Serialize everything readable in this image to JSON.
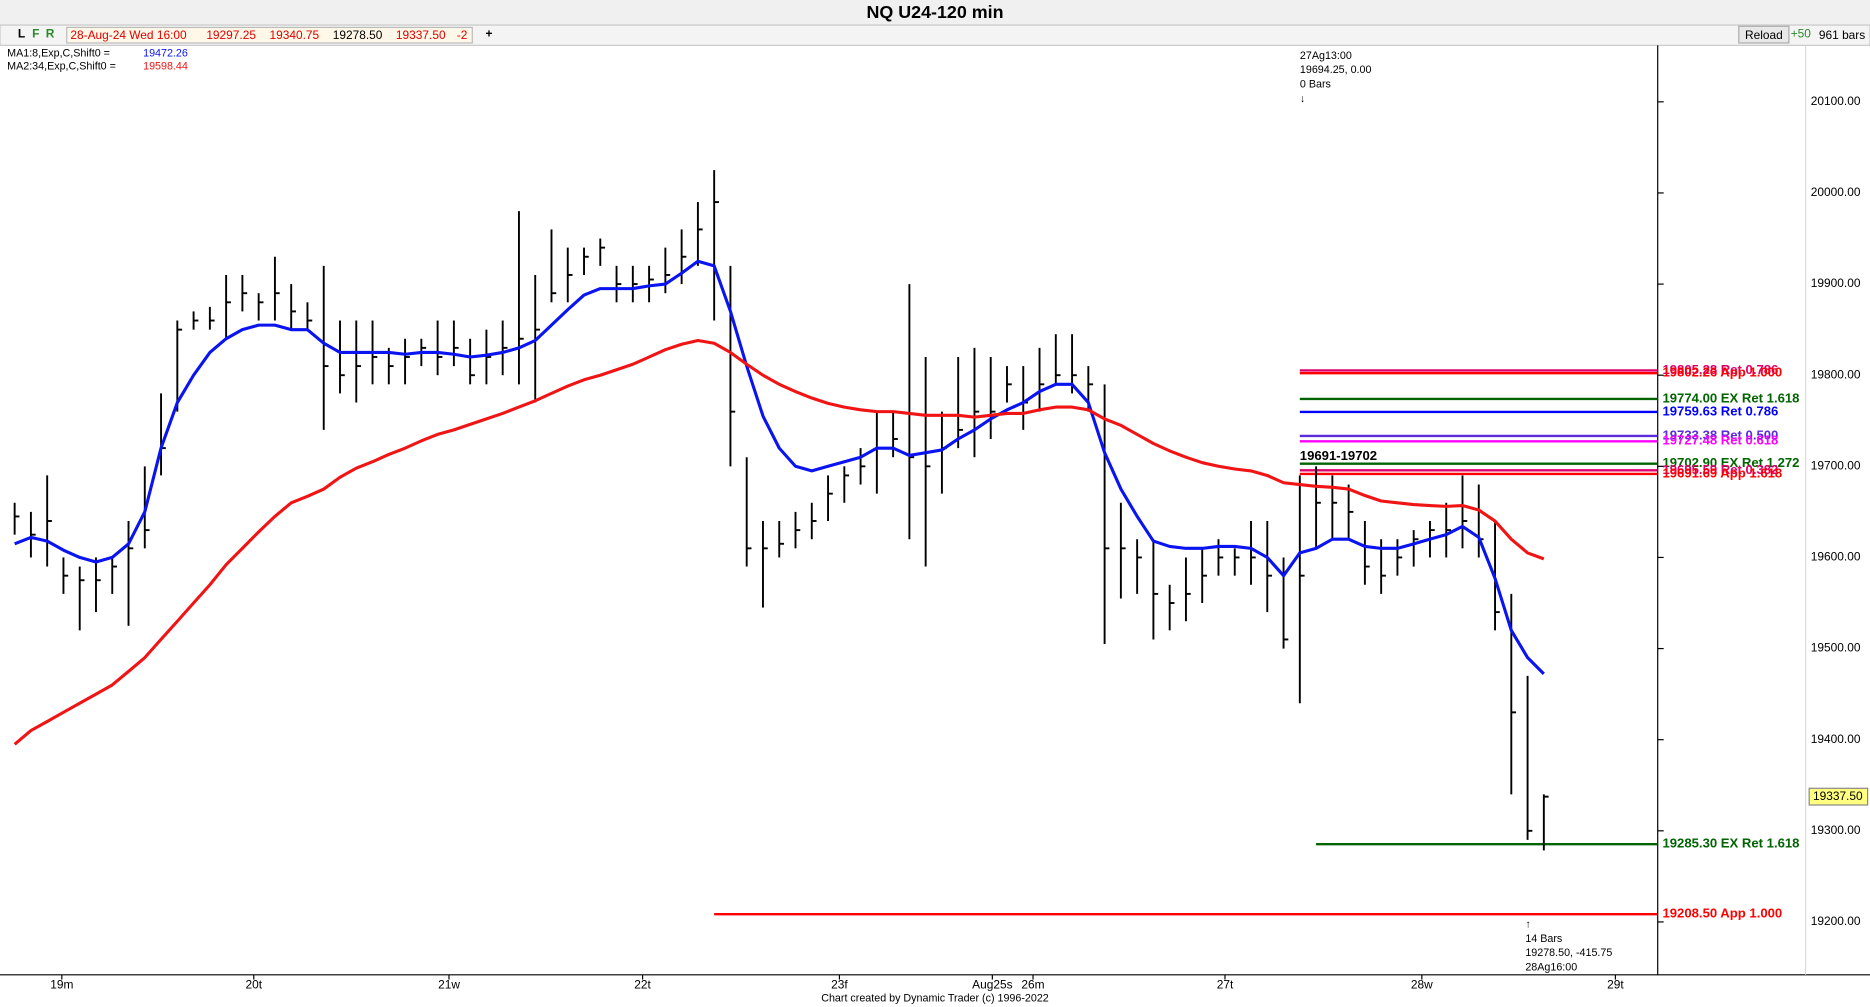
{
  "toolbar": {
    "buttons": [
      "L",
      "F",
      "R"
    ],
    "quote": [
      "28-Aug-24 Wed 16:00",
      "19297.25",
      "19340.75",
      "19278.50",
      "19337.50",
      "-2"
    ],
    "plus": "+",
    "reload": "Reload",
    "step": "+50",
    "bars": "961 bars"
  },
  "chart_data": {
    "type": "hlc",
    "title": "NQ U24-120 min",
    "bar_color": "#000000",
    "high": [
      19660,
      19650,
      19690,
      19600,
      19590,
      19600,
      19600,
      19640,
      19700,
      19780,
      19860,
      19870,
      19875,
      19910,
      19910,
      19890,
      19930,
      19900,
      19880,
      19920,
      19860,
      19860,
      19860,
      19830,
      19840,
      19840,
      19860,
      19860,
      19840,
      19850,
      19860,
      19980,
      19910,
      19960,
      19940,
      19940,
      19950,
      19920,
      19920,
      19920,
      19940,
      19960,
      19990,
      20025,
      19920,
      19710,
      19640,
      19640,
      19650,
      19660,
      19690,
      19700,
      19720,
      19760,
      19760,
      19900,
      19820,
      19760,
      19820,
      19830,
      19820,
      19810,
      19810,
      19830,
      19845,
      19845,
      19810,
      19790,
      19660,
      19620,
      19620,
      19570,
      19600,
      19610,
      19620,
      19610,
      19640,
      19640,
      19600,
      19690,
      19700,
      19690,
      19680,
      19640,
      19620,
      19620,
      19630,
      19640,
      19660,
      19690,
      19680,
      19640,
      19560,
      19470,
      19340
    ],
    "low": [
      19625,
      19600,
      19590,
      19560,
      19520,
      19540,
      19560,
      19525,
      19610,
      19690,
      19760,
      19850,
      19850,
      19840,
      19870,
      19860,
      19860,
      19850,
      19850,
      19740,
      19780,
      19770,
      19790,
      19790,
      19790,
      19810,
      19800,
      19810,
      19790,
      19790,
      19800,
      19790,
      19770,
      19880,
      19880,
      19910,
      19920,
      19880,
      19880,
      19880,
      19890,
      19900,
      19920,
      19860,
      19700,
      19590,
      19545,
      19600,
      19610,
      19620,
      19640,
      19660,
      19680,
      19670,
      19710,
      19620,
      19590,
      19670,
      19720,
      19710,
      19730,
      19770,
      19740,
      19760,
      19790,
      19780,
      19760,
      19505,
      19555,
      19560,
      19510,
      19520,
      19530,
      19550,
      19580,
      19580,
      19570,
      19540,
      19500,
      19440,
      19610,
      19620,
      19620,
      19570,
      19560,
      19580,
      19590,
      19600,
      19600,
      19610,
      19600,
      19520,
      19340,
      19290,
      19278.5
    ],
    "close": [
      19645,
      19625,
      19640,
      19580,
      19575,
      19575,
      19590,
      19610,
      19630,
      19720,
      19850,
      19860,
      19860,
      19880,
      19890,
      19880,
      19890,
      19870,
      19860,
      19810,
      19800,
      19810,
      19820,
      19810,
      19820,
      19830,
      19820,
      19830,
      19800,
      19820,
      19830,
      19840,
      19850,
      19890,
      19910,
      19930,
      19940,
      19900,
      19900,
      19905,
      19910,
      19930,
      19960,
      19990,
      19760,
      19610,
      19610,
      19615,
      19630,
      19640,
      19670,
      19690,
      19700,
      19720,
      19730,
      19710,
      19700,
      19720,
      19740,
      19760,
      19760,
      19790,
      19770,
      19790,
      19800,
      19800,
      19790,
      19610,
      19610,
      19600,
      19560,
      19550,
      19560,
      19580,
      19600,
      19600,
      19600,
      19580,
      19510,
      19580,
      19660,
      19660,
      19650,
      19590,
      19580,
      19600,
      19620,
      19630,
      19630,
      19640,
      19620,
      19540,
      19430,
      19300,
      19337.5
    ],
    "series": [
      {
        "name": "MA1:8,Exp,C,Shift0 =",
        "last_label": "19472.26",
        "color": "#0a14f0",
        "values": [
          19615,
          19622,
          19618,
          19608,
          19600,
          19595,
          19600,
          19615,
          19650,
          19720,
          19770,
          19800,
          19825,
          19840,
          19850,
          19855,
          19855,
          19850,
          19850,
          19835,
          19825,
          19825,
          19825,
          19825,
          19823,
          19825,
          19825,
          19823,
          19820,
          19822,
          19825,
          19830,
          19838,
          19855,
          19872,
          19888,
          19895,
          19895,
          19895,
          19898,
          19900,
          19912,
          19925,
          19920,
          19870,
          19810,
          19755,
          19720,
          19700,
          19695,
          19700,
          19705,
          19710,
          19720,
          19720,
          19712,
          19715,
          19718,
          19730,
          19740,
          19752,
          19762,
          19770,
          19782,
          19790,
          19790,
          19770,
          19715,
          19675,
          19645,
          19618,
          19612,
          19610,
          19610,
          19612,
          19612,
          19610,
          19600,
          19580,
          19605,
          19610,
          19620,
          19620,
          19612,
          19610,
          19610,
          19615,
          19620,
          19625,
          19634,
          19622,
          19577,
          19520,
          19490,
          19472.26
        ]
      },
      {
        "name": "MA2:34,Exp,C,Shift0 =",
        "last_label": "19598.44",
        "color": "#f01414",
        "values": [
          19395,
          19410,
          19420,
          19430,
          19440,
          19450,
          19460,
          19475,
          19490,
          19510,
          19530,
          19550,
          19570,
          19592,
          19610,
          19628,
          19645,
          19660,
          19667,
          19675,
          19688,
          19698,
          19705,
          19713,
          19720,
          19728,
          19735,
          19740,
          19746,
          19752,
          19758,
          19765,
          19772,
          19780,
          19788,
          19795,
          19800,
          19806,
          19812,
          19820,
          19828,
          19834,
          19838,
          19835,
          19825,
          19812,
          19800,
          19790,
          19782,
          19775,
          19769,
          19765,
          19762,
          19760,
          19760,
          19758,
          19756,
          19756,
          19756,
          19754,
          19756,
          19758,
          19758,
          19762,
          19765,
          19765,
          19762,
          19752,
          19745,
          19735,
          19725,
          19717,
          19710,
          19704,
          19700,
          19697,
          19695,
          19690,
          19682,
          19680,
          19678,
          19677,
          19675,
          19668,
          19662,
          19660,
          19658,
          19657,
          19656,
          19657,
          19652,
          19640,
          19620,
          19605,
          19598.44
        ]
      }
    ],
    "xlim": [
      -0.9,
      101
    ],
    "xticks": [
      {
        "value": 2.9,
        "label": "19m"
      },
      {
        "value": 14.7,
        "label": "20t"
      },
      {
        "value": 26.7,
        "label": "21w"
      },
      {
        "value": 38.6,
        "label": "22t"
      },
      {
        "value": 50.7,
        "label": "23f"
      },
      {
        "value": 60.1,
        "label": "Aug25s"
      },
      {
        "value": 62.6,
        "label": "26m"
      },
      {
        "value": 74.4,
        "label": "27t"
      },
      {
        "value": 86.5,
        "label": "28w"
      },
      {
        "value": 98.4,
        "label": "29t"
      }
    ],
    "ylim": [
      19142,
      20162
    ],
    "yticks": [
      {
        "value": 19200,
        "label": "19200.00"
      },
      {
        "value": 19300,
        "label": "19300.00"
      },
      {
        "value": 19400,
        "label": "19400.00"
      },
      {
        "value": 19500,
        "label": "19500.00"
      },
      {
        "value": 19600,
        "label": "19600.00"
      },
      {
        "value": 19700,
        "label": "19700.00"
      },
      {
        "value": 19800,
        "label": "19800.00"
      },
      {
        "value": 19900,
        "label": "19900.00"
      },
      {
        "value": 20000,
        "label": "20000.00"
      },
      {
        "value": 20100,
        "label": "20100.00"
      }
    ],
    "levels": [
      {
        "value": 19805.28,
        "label": "19805.28 Ret 0.786",
        "color": "#e0006b",
        "start_bar": 79
      },
      {
        "value": 19802.26,
        "label": "19802.26 App 1.000",
        "color": "#ff0000",
        "start_bar": 79
      },
      {
        "value": 19774,
        "label": "19774.00 EX Ret 1.618",
        "color": "#006400",
        "start_bar": 79
      },
      {
        "value": 19759.63,
        "label": "19759.63 Ret 0.786",
        "color": "#0000ff",
        "start_bar": 79
      },
      {
        "value": 19733.38,
        "label": "19733.38 Ret 0.500",
        "color": "#5b2bd9",
        "start_bar": 79
      },
      {
        "value": 19727.48,
        "label": "19727.48 Ret 0.618",
        "color": "#ff00ff",
        "start_bar": 79
      },
      {
        "value": 19702.9,
        "label": "19702.90 EX Ret 1.272",
        "color": "#006400",
        "start_bar": 79
      },
      {
        "value": 19695.59,
        "label": "19695.59 Ret 0.382",
        "color": "#e0006b",
        "start_bar": 79
      },
      {
        "value": 19691.69,
        "label": "19691.69 App 1.618",
        "color": "#ff0000",
        "start_bar": 79
      },
      {
        "value": 19285.3,
        "label": "19285.30 EX Ret 1.618",
        "color": "#006400",
        "start_bar": 80
      },
      {
        "value": 19208.5,
        "label": "19208.50 App 1.000",
        "color": "#ff0000",
        "start_bar": 43
      }
    ],
    "zone_label": "19691-19702",
    "annotations": [
      [
        "27Ag13:00",
        "19694.25, 0.00",
        "0 Bars",
        "↓"
      ],
      [
        "↑",
        "14 Bars",
        "19278.50, -415.75",
        "28Ag16:00"
      ]
    ],
    "last_price": {
      "value": 19337.5,
      "label": "19337.50"
    },
    "footer": "Chart created by Dynamic Trader  (c) 1996-2022"
  }
}
